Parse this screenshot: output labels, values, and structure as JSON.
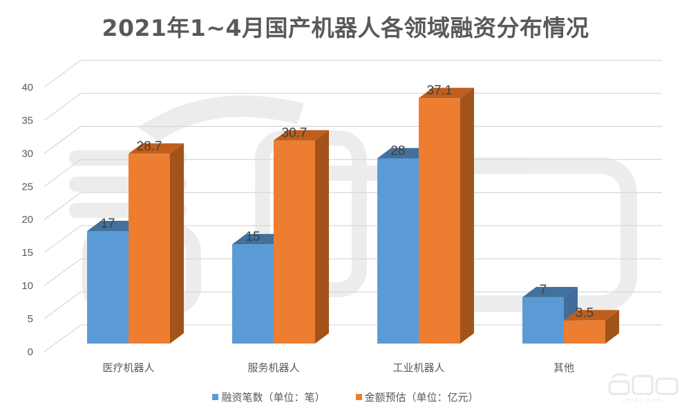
{
  "title": "2021年1~4月国产机器人各领域融资分布情况",
  "colors": {
    "series1": "#5B9BD5",
    "series1_top": "#41719C",
    "series1_side": "#3F6E9A",
    "series2": "#ED7D31",
    "series2_top": "#BE5F1E",
    "series2_side": "#A2531A",
    "grid": "#D9D9D9",
    "text": "#595959"
  },
  "legend": [
    {
      "label": "融资笔数（单位：笔）",
      "color": "#5B9BD5"
    },
    {
      "label": "金额预估（单位：亿元）",
      "color": "#ED7D31"
    }
  ],
  "watermark": {
    "text": "智東西",
    "subtext": "zhidx.com"
  },
  "chart_data": {
    "type": "bar",
    "subtype": "3d-clustered-column",
    "title": "2021年1~4月国产机器人各领域融资分布情况",
    "categories": [
      "医疗机器人",
      "服务机器人",
      "工业机器人",
      "其他"
    ],
    "series": [
      {
        "name": "融资笔数（单位：笔）",
        "values": [
          17,
          15,
          28,
          7
        ]
      },
      {
        "name": "金额预估（单位：亿元）",
        "values": [
          28.7,
          30.7,
          37.1,
          3.5
        ]
      }
    ],
    "data_labels": [
      [
        "17",
        "15",
        "28",
        "7"
      ],
      [
        "28.7",
        "30.7",
        "37.1",
        "3.5"
      ]
    ],
    "xlabel": "",
    "ylabel": "",
    "ylim": [
      0,
      40
    ],
    "yticks": [
      "0",
      "5",
      "10",
      "15",
      "20",
      "25",
      "30",
      "35",
      "40"
    ],
    "grid": true,
    "legend_position": "bottom"
  }
}
